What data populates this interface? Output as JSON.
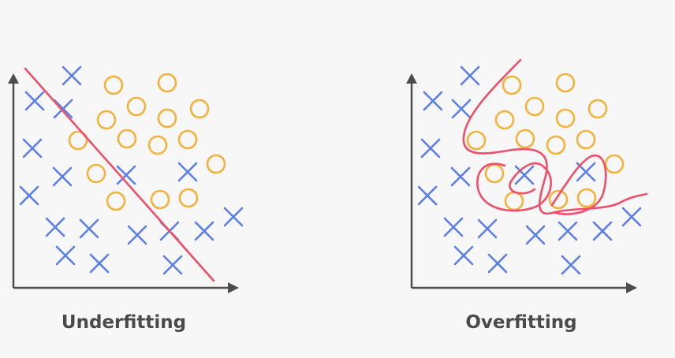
{
  "panels": [
    {
      "label": "Underfitting"
    },
    {
      "label": "Overfitting"
    }
  ]
}
